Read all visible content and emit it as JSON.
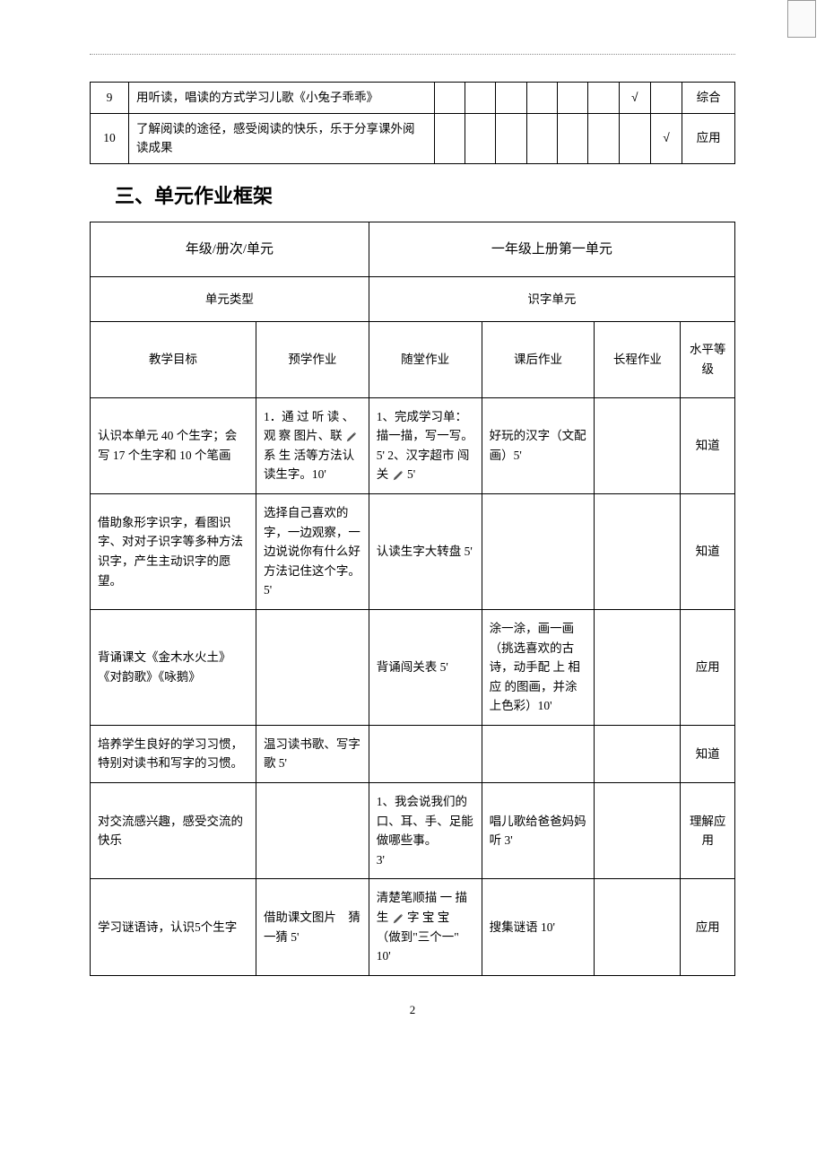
{
  "top_table": {
    "rows": [
      {
        "num": "9",
        "desc": "用听读，唱读的方式学习儿歌《小兔子乖乖》",
        "check_col": 6,
        "tag": "综合"
      },
      {
        "num": "10",
        "desc": "了解阅读的途径，感受阅读的快乐，乐于分享课外阅读成果",
        "check_col": 7,
        "tag": "应用"
      }
    ],
    "check_mark": "√",
    "narrow_count": 8
  },
  "section_title": "三、单元作业框架",
  "main_table": {
    "row1": {
      "left": "年级/册次/单元",
      "right": "一年级上册第一单元"
    },
    "row2": {
      "left": "单元类型",
      "right": "识字单元"
    },
    "headers": {
      "goal": "教学目标",
      "pre": "预学作业",
      "in": "随堂作业",
      "after": "课后作业",
      "long": "长程作业",
      "level": "水平等级"
    },
    "body": [
      {
        "goal": "认识本单元 40 个生字；会写 17 个生字和 10 个笔画",
        "pre": "1．通 过 听 读 、观 察 图片、联 ✎ 系 生 活等方法认读生字。10'",
        "in": "1、完成学习单：描一描，写一写。5' 2、汉字超市 闯 关 ✎ 5'",
        "after": "好玩的汉字（文配画）5'",
        "long": "",
        "level": "知道"
      },
      {
        "goal": "借助象形字识字，看图识字、对对子识字等多种方法识字，产生主动识字的愿望。",
        "pre": "选择自己喜欢的字，一边观察，一边说说你有什么好方法记住这个字。5'",
        "in": "认读生字大转盘 5'",
        "after": "",
        "long": "",
        "level": "知道"
      },
      {
        "goal": "背诵课文《金木水火土》《对韵歌》《咏鹅》",
        "pre": "",
        "in": "背诵闯关表 5'",
        "after": "涂一涂，画一画（挑选喜欢的古诗，动手配 上 相 应 的图画，并涂上色彩）10'",
        "long": "",
        "level": "应用"
      },
      {
        "goal": "培养学生良好的学习习惯，特别对读书和写字的习惯。",
        "pre": "温习读书歌、写字歌 5'",
        "in": "",
        "after": "",
        "long": "",
        "level": "知道"
      },
      {
        "goal": "对交流感兴趣，感受交流的快乐",
        "pre": "",
        "in": "1、我会说我们的口、耳、手、足能做哪些事。\n3'",
        "after": "唱儿歌给爸爸妈妈听 3'",
        "long": "",
        "level": "理解应用"
      },
      {
        "goal": "学习谜语诗，认识5个生字",
        "pre": "借助课文图片　猜一猜 5'",
        "in": "清楚笔顺描 一 描 生 ✎ 字 宝 宝 （做到\"三个一\" 10'",
        "after": "搜集谜语 10'",
        "long": "",
        "level": "应用"
      }
    ]
  },
  "page_number": "2"
}
